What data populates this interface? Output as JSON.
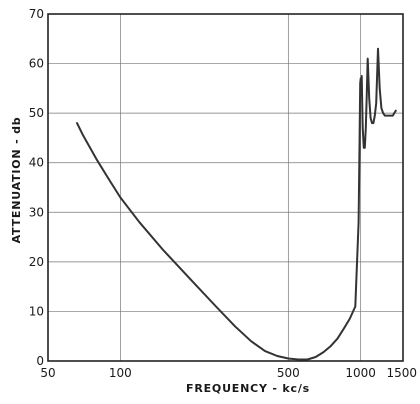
{
  "chart_data": {
    "type": "line",
    "title": "",
    "xlabel": "FREQUENCY - kc/s",
    "ylabel": "ATTENUATION - db",
    "xscale": "log",
    "xlim": [
      50,
      1500
    ],
    "ylim": [
      0,
      70
    ],
    "grid": true,
    "x_ticks": [
      50,
      100,
      500,
      1000,
      1500
    ],
    "x_tick_labels": [
      "50",
      "100",
      "500",
      "1000",
      "1500"
    ],
    "y_ticks": [
      0,
      10,
      20,
      30,
      40,
      50,
      60,
      70
    ],
    "y_tick_labels": [
      "0",
      "10",
      "20",
      "30",
      "40",
      "50",
      "60",
      "70"
    ],
    "series": [
      {
        "name": "",
        "color": "#333333",
        "x": [
          66,
          70,
          80,
          90,
          100,
          120,
          150,
          200,
          250,
          300,
          350,
          400,
          450,
          500,
          550,
          600,
          650,
          700,
          750,
          800,
          850,
          900,
          950,
          980,
          990,
          995,
          1000,
          1005,
          1010,
          1020,
          1030,
          1040,
          1050,
          1060,
          1070,
          1085,
          1100,
          1115,
          1130,
          1145,
          1160,
          1180,
          1200,
          1220,
          1240,
          1260,
          1280,
          1300,
          1320,
          1340,
          1360,
          1380,
          1400
        ],
        "y": [
          48,
          45.5,
          40.5,
          36.5,
          33,
          28,
          22.5,
          16,
          11,
          7,
          4,
          2,
          1,
          0.5,
          0.3,
          0.3,
          0.8,
          1.8,
          3,
          4.5,
          6.5,
          8.5,
          11,
          28,
          45,
          56,
          57,
          56.5,
          57.5,
          47,
          43,
          43,
          47,
          54,
          61,
          53,
          49,
          48,
          48,
          49.5,
          52,
          63,
          55,
          51,
          50,
          49.5,
          49.5,
          49.5,
          49.5,
          49.5,
          49.5,
          50,
          50.5
        ]
      }
    ]
  }
}
